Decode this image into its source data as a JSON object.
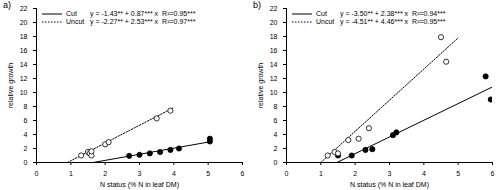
{
  "chart_data": [
    {
      "type": "scatter",
      "title": "a)",
      "x_label": "N status (% N in leaf DM)",
      "y_label": "relative growth",
      "xlim": [
        0,
        6
      ],
      "xticks": [
        0,
        1,
        2,
        3,
        4,
        5,
        6
      ],
      "ylim": [
        0,
        22
      ],
      "yticks": [
        0,
        2,
        4,
        6,
        8,
        10,
        12,
        14,
        16,
        18,
        20,
        22
      ],
      "legend": "upper left",
      "series": [
        {
          "name": "Cut",
          "color": "#000000",
          "marker": "filled circle",
          "line_style": "solid",
          "equation": "y = -1.43** + 0.87*** x",
          "r2": "R²=0.95***",
          "x": [
            2.7,
            3.0,
            3.3,
            3.6,
            3.9,
            4.15,
            5.05,
            5.05
          ],
          "values": [
            0.95,
            1.1,
            1.3,
            1.5,
            1.8,
            2.0,
            3.0,
            3.4
          ],
          "fit_line": {
            "x": [
              1.65,
              5.1
            ],
            "values": [
              0.0,
              3.0
            ]
          }
        },
        {
          "name": "Uncut",
          "color": "#000000",
          "marker": "open circle",
          "line_style": "dotted",
          "equation": "y = -2.27** + 2.53*** x",
          "r2": "R²=0.97***",
          "x": [
            1.3,
            1.5,
            1.55,
            1.6,
            1.6,
            2.0,
            2.1,
            3.5,
            3.9
          ],
          "values": [
            1.0,
            1.5,
            1.3,
            1.0,
            1.6,
            2.6,
            2.9,
            6.3,
            7.4
          ],
          "fit_line": {
            "x": [
              0.9,
              4.0
            ],
            "values": [
              0.0,
              7.85
            ]
          }
        }
      ]
    },
    {
      "type": "scatter",
      "title": "b)",
      "x_label": "N status (% N in leaf DM)",
      "y_label": "relative growth",
      "xlim": [
        0,
        6
      ],
      "xticks": [
        0,
        1,
        2,
        3,
        4,
        5,
        6
      ],
      "ylim": [
        0,
        22
      ],
      "yticks": [
        0,
        2,
        4,
        6,
        8,
        10,
        12,
        14,
        16,
        18,
        20,
        22
      ],
      "legend": "upper left",
      "series": [
        {
          "name": "Cut",
          "color": "#000000",
          "marker": "filled circle",
          "line_style": "solid",
          "equation": "y = -3.50** + 2.38*** x",
          "r2": "R²=0.94***",
          "x": [
            1.5,
            1.9,
            2.3,
            2.5,
            3.1,
            3.2,
            5.8,
            5.95
          ],
          "values": [
            1.0,
            1.0,
            1.8,
            1.9,
            3.9,
            4.3,
            12.3,
            9.0
          ],
          "fit_line": {
            "x": [
              1.47,
              6.0
            ],
            "values": [
              0.0,
              10.8
            ]
          }
        },
        {
          "name": "Uncut",
          "color": "#000000",
          "marker": "open circle",
          "line_style": "dotted",
          "equation": "y = -4.51** + 4.46*** x",
          "r2": "R²=0.95***",
          "x": [
            1.2,
            1.4,
            1.5,
            1.8,
            2.1,
            2.4,
            4.5,
            4.65
          ],
          "values": [
            1.0,
            1.5,
            1.3,
            3.2,
            3.4,
            4.9,
            17.9,
            14.4
          ],
          "fit_line": {
            "x": [
              1.0,
              5.0
            ],
            "values": [
              0.0,
              17.8
            ]
          }
        }
      ]
    }
  ]
}
